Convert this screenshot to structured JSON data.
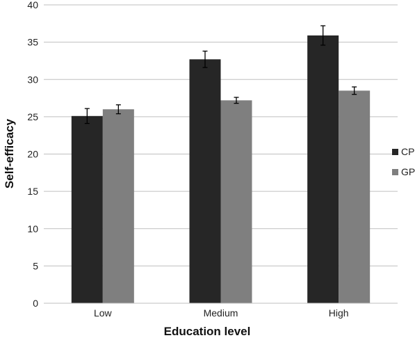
{
  "chart_data": {
    "type": "bar",
    "title": "",
    "xlabel": "Education level",
    "ylabel": "Self-efficacy",
    "categories": [
      "Low",
      "Medium",
      "High"
    ],
    "ylim": [
      0,
      40
    ],
    "yticks": [
      0,
      5,
      10,
      15,
      20,
      25,
      30,
      35,
      40
    ],
    "grid": true,
    "legend_position": "right",
    "series": [
      {
        "name": "CP",
        "color": "#262626",
        "values": [
          25.1,
          32.7,
          35.9
        ],
        "errors": [
          1.0,
          1.1,
          1.3
        ]
      },
      {
        "name": "GP",
        "color": "#7f7f7f",
        "values": [
          26.0,
          27.2,
          28.5
        ],
        "errors": [
          0.6,
          0.4,
          0.5
        ]
      }
    ]
  }
}
